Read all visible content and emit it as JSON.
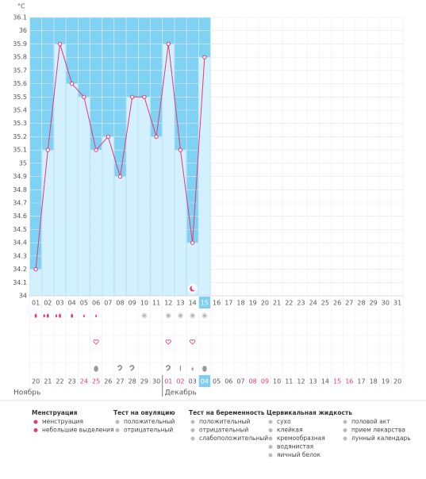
{
  "chart_data": {
    "type": "line",
    "unit": "°C",
    "categories": [
      "01",
      "02",
      "03",
      "04",
      "05",
      "06",
      "07",
      "08",
      "09",
      "10",
      "11",
      "12",
      "13",
      "14",
      "15",
      "16",
      "17",
      "18",
      "19",
      "20",
      "21",
      "22",
      "23",
      "24",
      "25",
      "26",
      "27",
      "28",
      "29",
      "30",
      "31"
    ],
    "values": [
      34.2,
      35.1,
      35.9,
      35.6,
      35.5,
      35.1,
      35.2,
      34.9,
      35.5,
      35.5,
      35.2,
      35.9,
      35.1,
      34.4,
      35.8,
      null,
      null,
      null,
      null,
      null,
      null,
      null,
      null,
      null,
      null,
      null,
      null,
      null,
      null,
      null,
      null
    ],
    "color": "#e23a77",
    "bar_color": "#d2f0fd",
    "filled_color": "#80d2f4",
    "ylim": [
      34,
      36.1
    ],
    "yticks": [
      34,
      34.1,
      34.2,
      34.3,
      34.4,
      34.5,
      34.6,
      34.7,
      34.8,
      34.9,
      35,
      35.1,
      35.2,
      35.3,
      35.4,
      35.5,
      35.6,
      35.7,
      35.8,
      35.9,
      36,
      36.1
    ],
    "grid": true,
    "current_index": 14,
    "dates": [
      "20",
      "21",
      "22",
      "23",
      "24",
      "25",
      "26",
      "27",
      "28",
      "29",
      "30",
      "01",
      "02",
      "03",
      "04",
      "05",
      "06",
      "07",
      "08",
      "09",
      "10",
      "11",
      "12",
      "13",
      "14",
      "15",
      "16",
      "17",
      "18",
      "19",
      "20"
    ],
    "red_dates": [
      4,
      5,
      11,
      12,
      18,
      19,
      25,
      26
    ],
    "today_date_index": 14,
    "months": [
      "Ноябрь",
      "Декабрь"
    ],
    "month_start_index": 11
  },
  "legend": {
    "groups": [
      {
        "title": "Менструация",
        "items": [
          "менструация",
          "небольшие выделения"
        ]
      },
      {
        "title": "Тест на овуляцию",
        "items": [
          "положительный",
          "отрицательный"
        ]
      },
      {
        "title": "Тест на беременность",
        "items": [
          "положительный",
          "отрицательный",
          "слабоположительный"
        ]
      },
      {
        "title": "Цервикальная жидкость",
        "items": [
          "сухо",
          "клейкая",
          "кремообразная",
          "водянистая",
          "яичный белок"
        ]
      },
      {
        "items": [
          "половой акт",
          "прием лекарства",
          "лунный календарь"
        ]
      }
    ]
  }
}
